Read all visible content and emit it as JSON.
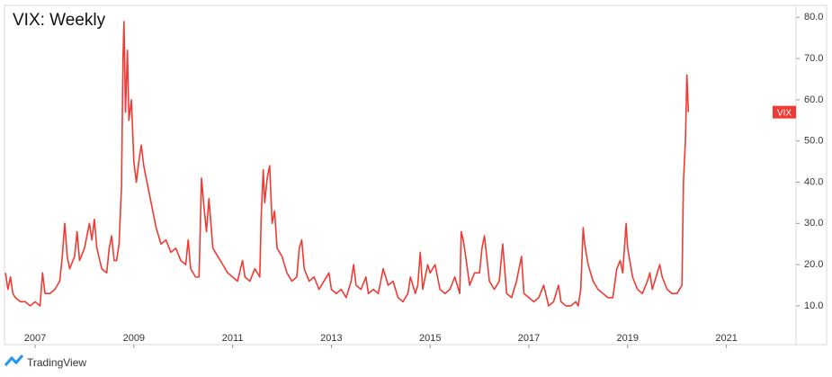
{
  "chart_data": {
    "type": "line",
    "title": "VIX: Weekly",
    "x": [
      2006.4,
      2006.45,
      2006.5,
      2006.55,
      2006.6,
      2006.7,
      2006.8,
      2006.9,
      2007.0,
      2007.1,
      2007.15,
      2007.2,
      2007.3,
      2007.4,
      2007.5,
      2007.55,
      2007.6,
      2007.65,
      2007.7,
      2007.8,
      2007.85,
      2007.9,
      2008.0,
      2008.05,
      2008.1,
      2008.15,
      2008.2,
      2008.25,
      2008.35,
      2008.45,
      2008.5,
      2008.55,
      2008.6,
      2008.65,
      2008.7,
      2008.75,
      2008.78,
      2008.8,
      2008.83,
      2008.87,
      2008.9,
      2008.95,
      2009.0,
      2009.05,
      2009.1,
      2009.15,
      2009.2,
      2009.25,
      2009.35,
      2009.45,
      2009.55,
      2009.65,
      2009.75,
      2009.85,
      2009.95,
      2010.05,
      2010.1,
      2010.15,
      2010.25,
      2010.32,
      2010.37,
      2010.42,
      2010.47,
      2010.52,
      2010.6,
      2010.7,
      2010.8,
      2010.9,
      2011.0,
      2011.1,
      2011.2,
      2011.25,
      2011.35,
      2011.45,
      2011.55,
      2011.58,
      2011.62,
      2011.65,
      2011.7,
      2011.75,
      2011.8,
      2011.85,
      2011.9,
      2012.0,
      2012.1,
      2012.2,
      2012.3,
      2012.35,
      2012.4,
      2012.45,
      2012.55,
      2012.65,
      2012.75,
      2012.85,
      2012.95,
      2013.0,
      2013.1,
      2013.2,
      2013.3,
      2013.4,
      2013.45,
      2013.5,
      2013.6,
      2013.7,
      2013.75,
      2013.85,
      2013.95,
      2014.05,
      2014.15,
      2014.25,
      2014.35,
      2014.45,
      2014.55,
      2014.6,
      2014.7,
      2014.75,
      2014.8,
      2014.85,
      2014.95,
      2015.0,
      2015.1,
      2015.2,
      2015.3,
      2015.4,
      2015.5,
      2015.6,
      2015.63,
      2015.67,
      2015.72,
      2015.8,
      2015.9,
      2016.0,
      2016.05,
      2016.1,
      2016.2,
      2016.3,
      2016.4,
      2016.47,
      2016.55,
      2016.65,
      2016.75,
      2016.85,
      2016.9,
      2017.0,
      2017.1,
      2017.2,
      2017.3,
      2017.4,
      2017.5,
      2017.6,
      2017.65,
      2017.75,
      2017.85,
      2017.95,
      2018.0,
      2018.05,
      2018.1,
      2018.13,
      2018.2,
      2018.3,
      2018.4,
      2018.5,
      2018.6,
      2018.7,
      2018.78,
      2018.85,
      2018.9,
      2018.97,
      2019.0,
      2019.1,
      2019.2,
      2019.3,
      2019.4,
      2019.45,
      2019.5,
      2019.6,
      2019.65,
      2019.7,
      2019.8,
      2019.9,
      2020.0,
      2020.1,
      2020.13,
      2020.17,
      2020.2,
      2020.23
    ],
    "series": [
      {
        "name": "VIX",
        "color": "#ef3b33",
        "values": [
          18,
          14,
          17,
          13,
          12,
          11,
          11,
          10,
          11,
          10,
          18,
          13,
          13,
          14,
          16,
          22,
          30,
          22,
          19,
          22,
          28,
          21,
          24,
          27,
          30,
          26,
          31,
          24,
          19,
          18,
          24,
          27,
          21,
          21,
          25,
          39,
          70,
          79,
          57,
          72,
          55,
          60,
          45,
          40,
          45,
          49,
          44,
          41,
          35,
          29,
          25,
          26,
          23,
          24,
          21,
          20,
          26,
          19,
          17,
          17,
          41,
          34,
          28,
          36,
          24,
          22,
          20,
          18,
          17,
          16,
          21,
          17,
          16,
          19,
          17,
          32,
          43,
          35,
          41,
          44,
          30,
          33,
          24,
          22,
          18,
          16,
          17,
          24,
          26,
          19,
          16,
          17,
          14,
          16,
          18,
          14,
          13,
          14,
          12,
          16,
          20,
          15,
          14,
          17,
          13,
          14,
          13,
          19,
          15,
          16,
          12,
          11,
          13,
          17,
          13,
          15,
          23,
          14,
          20,
          18,
          20,
          14,
          13,
          14,
          17,
          13,
          28,
          26,
          22,
          15,
          18,
          18,
          24,
          27,
          16,
          14,
          16,
          25,
          13,
          12,
          16,
          22,
          13,
          12,
          11,
          12,
          15,
          10,
          11,
          15,
          11,
          10,
          10,
          11,
          10,
          14,
          29,
          25,
          20,
          16,
          14,
          13,
          12,
          12,
          19,
          21,
          18,
          30,
          24,
          17,
          14,
          13,
          16,
          18,
          14,
          18,
          20,
          17,
          14,
          13,
          13,
          15,
          40,
          50,
          66,
          57
        ]
      }
    ],
    "xlim": [
      2006.38,
      2022.41
    ],
    "xticks": [
      2007,
      2009,
      2011,
      2013,
      2015,
      2017,
      2019,
      2021
    ],
    "ylim": [
      0.6,
      82.9
    ],
    "yticks": [
      {
        "value": 10,
        "label": "10.0"
      },
      {
        "value": 20,
        "label": "20.0"
      },
      {
        "value": 30,
        "label": "30.0"
      },
      {
        "value": 40,
        "label": "40.0"
      },
      {
        "value": 50,
        "label": "50.0"
      },
      {
        "value": 60,
        "label": "60.0"
      },
      {
        "value": 70,
        "label": "70.0"
      },
      {
        "value": 80,
        "label": "80.0"
      }
    ],
    "grid": false
  },
  "branding": "TradingView"
}
